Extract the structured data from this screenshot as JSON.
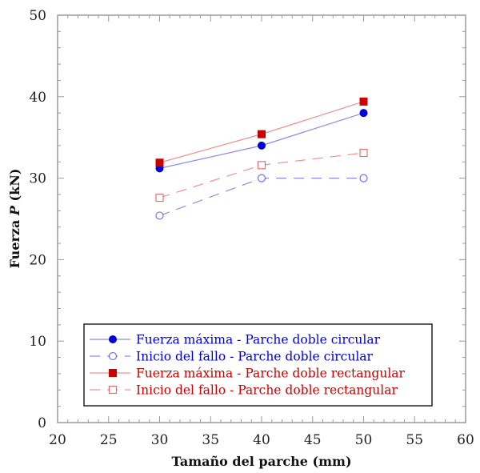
{
  "chart_data": {
    "type": "line",
    "title": "",
    "xlabel": "Tamaño del parche (mm)",
    "ylabel_prefix": "Fuerza ",
    "ylabel_italic": "P",
    "ylabel_suffix": " (kN)",
    "ylabel": "Fuerza P (kN)",
    "xlim": [
      20,
      60
    ],
    "ylim": [
      0,
      50
    ],
    "xticks": [
      20,
      25,
      30,
      35,
      40,
      45,
      50,
      55,
      60
    ],
    "yticks": [
      0,
      10,
      20,
      30,
      40,
      50
    ],
    "grid": false,
    "legend_position": "lower center",
    "x": [
      30,
      40,
      50
    ],
    "series": [
      {
        "name": "Fuerza máxima - Parche doble circular",
        "values": [
          31.2,
          34.0,
          38.0
        ],
        "color": "#0000dd",
        "line_color": "#8c8cf0",
        "marker": "filled-circle",
        "dash": "solid"
      },
      {
        "name": "Inicio del fallo - Parche doble circular",
        "values": [
          25.4,
          30.0,
          30.0
        ],
        "color": "#0000dd",
        "line_color": "#8c8cf0",
        "marker": "open-circle",
        "dash": "dashed"
      },
      {
        "name": "Fuerza máxima - Parche doble rectangular",
        "values": [
          31.9,
          35.4,
          39.4
        ],
        "color": "#cc0000",
        "line_color": "#f09090",
        "marker": "filled-square",
        "dash": "solid"
      },
      {
        "name": "Inicio del fallo - Parche doble rectangular",
        "values": [
          27.6,
          31.6,
          33.1
        ],
        "color": "#cc0000",
        "line_color": "#f09090",
        "marker": "open-square",
        "dash": "dashed"
      }
    ]
  }
}
